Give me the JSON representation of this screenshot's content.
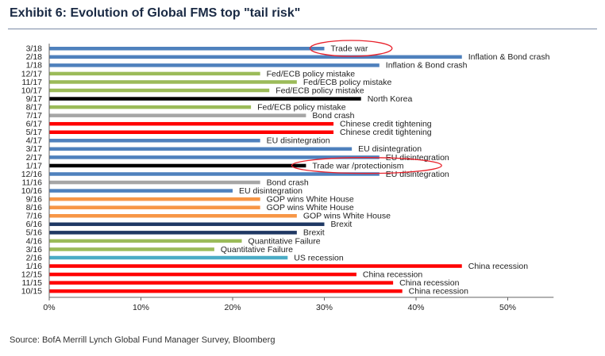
{
  "title": "Exhibit 6: Evolution of Global FMS top \"tail risk\"",
  "source": "Source: BofA Merrill Lynch Global Fund Manager Survey, Bloomberg",
  "colors": {
    "blue": "#4f81bd",
    "green": "#9bbb59",
    "black": "#000000",
    "grey": "#a6a6a6",
    "red": "#ff0000",
    "orange": "#f79646",
    "navy": "#1f3864",
    "teal": "#4bacc6",
    "highlight": "#e8212b"
  },
  "chart_data": {
    "type": "bar",
    "orientation": "horizontal",
    "xlim": [
      0,
      55
    ],
    "x_ticks": [
      0,
      10,
      20,
      30,
      40,
      50
    ],
    "x_tick_labels": [
      "0%",
      "10%",
      "20%",
      "30%",
      "40%",
      "50%"
    ],
    "categories": [
      "3/18",
      "2/18",
      "1/18",
      "12/17",
      "11/17",
      "10/17",
      "9/17",
      "8/17",
      "7/17",
      "6/17",
      "5/17",
      "4/17",
      "3/17",
      "2/17",
      "1/17",
      "12/16",
      "11/16",
      "10/16",
      "9/16",
      "8/16",
      "7/16",
      "6/16",
      "5/16",
      "4/16",
      "3/16",
      "2/16",
      "1/16",
      "12/15",
      "11/15",
      "10/15"
    ],
    "values": [
      30,
      45,
      36,
      23,
      27,
      24,
      34,
      22,
      28,
      31,
      31,
      23,
      33,
      36,
      28,
      36,
      23,
      20,
      23,
      23,
      27,
      30,
      27,
      21,
      18,
      26,
      45,
      33.5,
      37.5,
      38.5
    ],
    "bar_colors": [
      "blue",
      "blue",
      "blue",
      "green",
      "green",
      "green",
      "black",
      "green",
      "grey",
      "red",
      "red",
      "blue",
      "blue",
      "blue",
      "black",
      "blue",
      "grey",
      "blue",
      "orange",
      "orange",
      "orange",
      "navy",
      "navy",
      "green",
      "green",
      "teal",
      "red",
      "red",
      "red",
      "red"
    ],
    "labels": [
      "Trade war",
      "Inflation & Bond crash",
      "Inflation & Bond crash",
      "Fed/ECB policy mistake",
      "Fed/ECB policy mistake",
      "Fed/ECB policy mistake",
      "North Korea",
      "Fed/ECB policy mistake",
      "Bond crash",
      "Chinese credit tightening",
      "Chinese credit tightening",
      "EU disintegration",
      "EU disintegration",
      "EU disintegration",
      "Trade war /protectionism",
      "EU disintegration",
      "Bond crash",
      "EU disintegration",
      "GOP wins White House",
      "GOP wins White House",
      "GOP wins White House",
      "Brexit",
      "Brexit",
      "Quantitative Failure",
      "Quantitative Failure",
      "US recession",
      "China recession",
      "China recession",
      "China recession",
      "China recession"
    ],
    "highlighted": [
      "Trade war",
      "Trade war /protectionism"
    ],
    "grid": false,
    "legend": "none"
  }
}
